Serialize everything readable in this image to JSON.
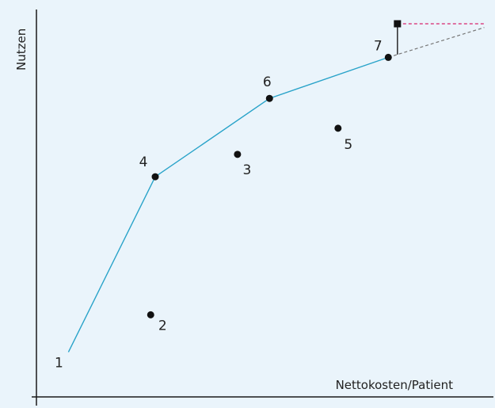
{
  "chart_data": {
    "type": "scatter",
    "title": "",
    "xlabel": "Nettokosten/Patient",
    "ylabel": "Nutzen",
    "xlim": [
      0,
      100
    ],
    "ylim": [
      0,
      100
    ],
    "grid": false,
    "points": [
      {
        "label": "1",
        "x": 7,
        "y": 12
      },
      {
        "label": "2",
        "x": 25,
        "y": 22
      },
      {
        "label": "3",
        "x": 44,
        "y": 65
      },
      {
        "label": "4",
        "x": 26,
        "y": 59
      },
      {
        "label": "5",
        "x": 66,
        "y": 72
      },
      {
        "label": "6",
        "x": 51,
        "y": 80
      },
      {
        "label": "7",
        "x": 77,
        "y": 91
      }
    ],
    "frontier": [
      "1",
      "4",
      "6",
      "7"
    ],
    "extension": {
      "from": "7",
      "to": {
        "x": 98,
        "y": 99
      }
    },
    "new_point": {
      "x": 79,
      "y": 100
    },
    "reference_line": {
      "from": {
        "x": 79,
        "y": 100
      },
      "to": {
        "x": 98,
        "y": 100
      }
    }
  },
  "colors": {
    "background": "#eaf4fb",
    "frontier": "#29a3c9",
    "reference": "#d6246e",
    "extension": "#777777",
    "points": "#111111"
  }
}
